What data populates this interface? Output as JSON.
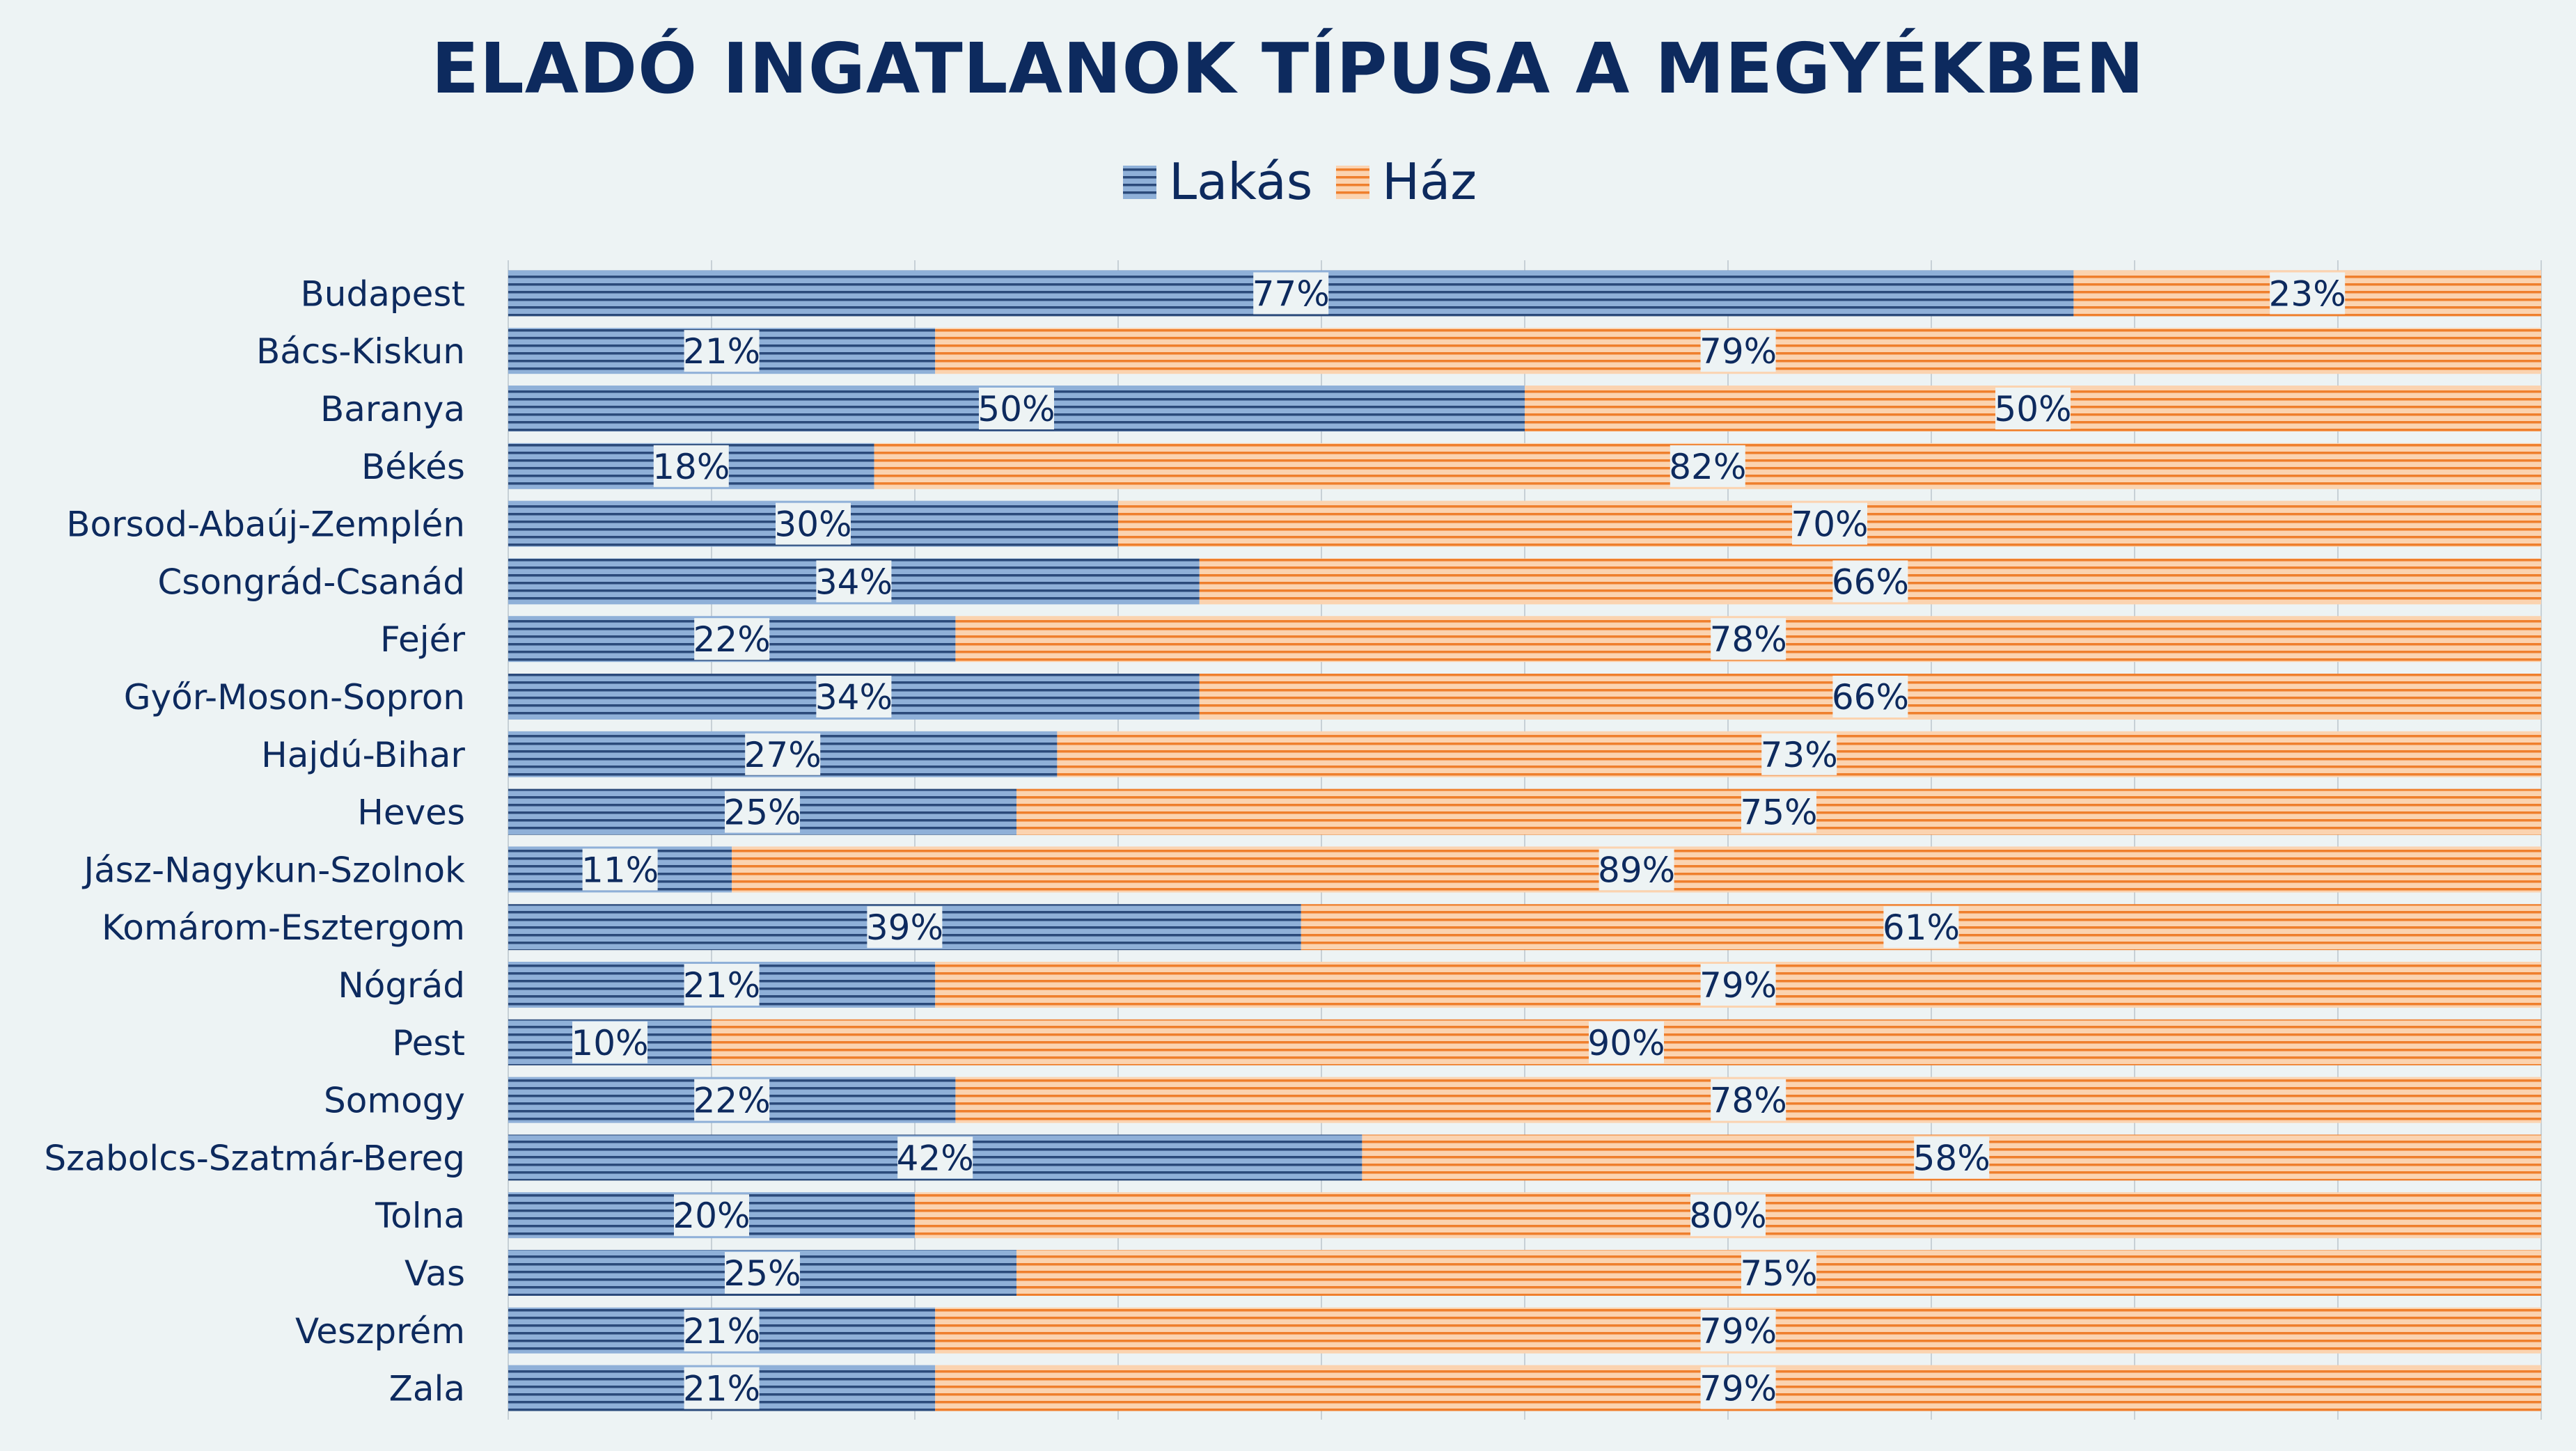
{
  "chart_data": {
    "type": "bar",
    "orientation": "horizontal",
    "stacked": true,
    "percent": true,
    "title": "ELADÓ INGATLANOK TÍPUSA A MEGYÉKBEN",
    "legend_position": "top-center",
    "xlim": [
      0,
      100
    ],
    "categories": [
      "Budapest",
      "Bács-Kiskun",
      "Baranya ",
      "Békés",
      "Borsod-Abaúj-Zemplén",
      "Csongrád-Csanád",
      "Fejér",
      "Győr-Moson-Sopron",
      "Hajdú-Bihar",
      "Heves",
      "Jász-Nagykun-Szolnok",
      "Komárom-Esztergom",
      "Nógrád",
      "Pest",
      "Somogy ",
      "Szabolcs-Szatmár-Bereg ",
      "Tolna ",
      "Vas ",
      "Veszprém",
      "Zala"
    ],
    "series": [
      {
        "name": "Lakás",
        "color": "#8fb0d8",
        "stripe": "#2b4a7a",
        "values": [
          77,
          21,
          50,
          18,
          30,
          34,
          22,
          34,
          27,
          25,
          11,
          39,
          21,
          10,
          22,
          42,
          20,
          25,
          21,
          21
        ],
        "labels": [
          "77%",
          "21%",
          "50%",
          "18%",
          "30%",
          "34%",
          "22%",
          "34%",
          "27%",
          "25%",
          "11%",
          "39%",
          "21%",
          "10%",
          "22%",
          "42%",
          "20%",
          "25%",
          "21%",
          "21%"
        ]
      },
      {
        "name": "Ház",
        "color": "#fbd3b0",
        "stripe": "#ef7f2d",
        "values": [
          23,
          79,
          50,
          82,
          70,
          66,
          78,
          66,
          73,
          75,
          89,
          61,
          79,
          90,
          78,
          58,
          80,
          75,
          79,
          79
        ],
        "labels": [
          "23%",
          "79%",
          "50%",
          "82%",
          "70%",
          "66%",
          "78%",
          "66%",
          "73%",
          "75%",
          "89%",
          "61%",
          "79%",
          "90%",
          "78%",
          "58%",
          "80%",
          "75%",
          "79%",
          "79%"
        ]
      }
    ]
  }
}
